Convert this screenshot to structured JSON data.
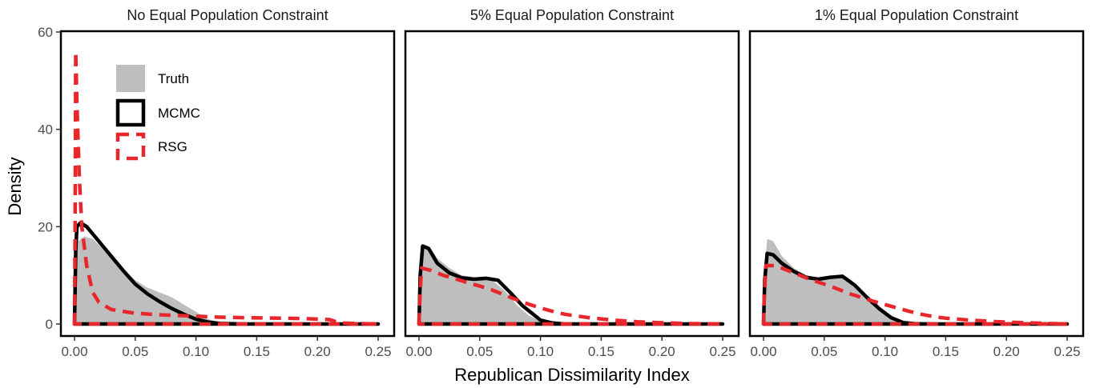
{
  "chart_data": {
    "type": "area",
    "xlabel": "Republican Dissimilarity Index",
    "ylabel": "Density",
    "xlim": [
      0,
      0.25
    ],
    "ylim": [
      0,
      60
    ],
    "xticks": [
      0.0,
      0.05,
      0.1,
      0.15,
      0.2,
      0.25
    ],
    "xtick_labels": [
      "0.00",
      "0.05",
      "0.10",
      "0.15",
      "0.20",
      "0.25"
    ],
    "yticks": [
      0,
      20,
      40,
      60
    ],
    "ytick_labels": [
      "0",
      "20",
      "40",
      "60"
    ],
    "grid": false,
    "legend": {
      "placement": "top-left-inside-first-panel",
      "entries": [
        {
          "label": "Truth",
          "style": "filled",
          "color": "#bebebe"
        },
        {
          "label": "MCMC",
          "style": "solid",
          "color": "#000000"
        },
        {
          "label": "RSG",
          "style": "dashed",
          "color": "#e8272c"
        }
      ]
    },
    "colors": {
      "truth": "#bebebe",
      "mcmc": "#000000",
      "rsg": "#e8272c"
    },
    "panels": [
      {
        "title": "No Equal Population Constraint",
        "series": [
          {
            "name": "Truth",
            "points": [
              [
                0,
                0
              ],
              [
                0.001,
                12
              ],
              [
                0.003,
                17
              ],
              [
                0.008,
                18
              ],
              [
                0.015,
                17.5
              ],
              [
                0.025,
                15
              ],
              [
                0.035,
                12.5
              ],
              [
                0.05,
                9
              ],
              [
                0.06,
                7.5
              ],
              [
                0.07,
                6.5
              ],
              [
                0.08,
                5.5
              ],
              [
                0.09,
                4
              ],
              [
                0.1,
                2.5
              ],
              [
                0.11,
                1
              ],
              [
                0.12,
                0.3
              ],
              [
                0.13,
                0.1
              ],
              [
                0.15,
                0
              ],
              [
                0.25,
                0
              ]
            ]
          },
          {
            "name": "MCMC",
            "points": [
              [
                0,
                0
              ],
              [
                0.001,
                15
              ],
              [
                0.002,
                20
              ],
              [
                0.005,
                20.8
              ],
              [
                0.01,
                20
              ],
              [
                0.02,
                17
              ],
              [
                0.03,
                14
              ],
              [
                0.04,
                11
              ],
              [
                0.05,
                8.2
              ],
              [
                0.06,
                6.2
              ],
              [
                0.07,
                4.6
              ],
              [
                0.08,
                3.2
              ],
              [
                0.09,
                2
              ],
              [
                0.1,
                1
              ],
              [
                0.11,
                0.4
              ],
              [
                0.12,
                0.1
              ],
              [
                0.14,
                0
              ],
              [
                0.25,
                0
              ]
            ]
          },
          {
            "name": "RSG",
            "points": [
              [
                0,
                0
              ],
              [
                0.0005,
                20
              ],
              [
                0.001,
                56
              ],
              [
                0.002,
                45
              ],
              [
                0.004,
                30
              ],
              [
                0.006,
                20
              ],
              [
                0.01,
                12
              ],
              [
                0.015,
                6.5
              ],
              [
                0.02,
                4.5
              ],
              [
                0.03,
                3
              ],
              [
                0.05,
                2.2
              ],
              [
                0.07,
                1.9
              ],
              [
                0.1,
                1.6
              ],
              [
                0.12,
                1.4
              ],
              [
                0.14,
                1.3
              ],
              [
                0.17,
                1.2
              ],
              [
                0.19,
                1.1
              ],
              [
                0.2,
                1
              ],
              [
                0.21,
                0.9
              ],
              [
                0.215,
                0.5
              ],
              [
                0.22,
                0.2
              ],
              [
                0.25,
                0
              ]
            ]
          }
        ]
      },
      {
        "title": "5% Equal Population Constraint",
        "series": [
          {
            "name": "Truth",
            "points": [
              [
                0,
                0
              ],
              [
                0.001,
                10
              ],
              [
                0.003,
                16.5
              ],
              [
                0.008,
                16
              ],
              [
                0.015,
                13.5
              ],
              [
                0.025,
                11.5
              ],
              [
                0.035,
                10
              ],
              [
                0.05,
                9.5
              ],
              [
                0.06,
                9
              ],
              [
                0.07,
                7
              ],
              [
                0.08,
                4
              ],
              [
                0.09,
                1.8
              ],
              [
                0.1,
                0.6
              ],
              [
                0.11,
                0.2
              ],
              [
                0.12,
                0
              ],
              [
                0.25,
                0
              ]
            ]
          },
          {
            "name": "MCMC",
            "points": [
              [
                0,
                0
              ],
              [
                0.001,
                10
              ],
              [
                0.003,
                16
              ],
              [
                0.008,
                15.5
              ],
              [
                0.015,
                12.5
              ],
              [
                0.025,
                10.5
              ],
              [
                0.035,
                9.5
              ],
              [
                0.045,
                9.2
              ],
              [
                0.055,
                9.4
              ],
              [
                0.065,
                9
              ],
              [
                0.075,
                6.5
              ],
              [
                0.085,
                3.8
              ],
              [
                0.095,
                1.8
              ],
              [
                0.1,
                0.8
              ],
              [
                0.11,
                0.2
              ],
              [
                0.12,
                0
              ],
              [
                0.25,
                0
              ]
            ]
          },
          {
            "name": "RSG",
            "points": [
              [
                0,
                0
              ],
              [
                0.0005,
                4
              ],
              [
                0.002,
                11.5
              ],
              [
                0.01,
                11
              ],
              [
                0.02,
                10
              ],
              [
                0.03,
                9.3
              ],
              [
                0.04,
                8.5
              ],
              [
                0.05,
                7.8
              ],
              [
                0.06,
                7
              ],
              [
                0.07,
                6
              ],
              [
                0.08,
                5
              ],
              [
                0.09,
                4.1
              ],
              [
                0.1,
                3.3
              ],
              [
                0.11,
                2.6
              ],
              [
                0.12,
                2
              ],
              [
                0.14,
                1.3
              ],
              [
                0.16,
                0.8
              ],
              [
                0.18,
                0.45
              ],
              [
                0.2,
                0.25
              ],
              [
                0.22,
                0.1
              ],
              [
                0.25,
                0
              ]
            ]
          }
        ]
      },
      {
        "title": "1% Equal Population Constraint",
        "series": [
          {
            "name": "Truth",
            "points": [
              [
                0,
                0
              ],
              [
                0.001,
                11
              ],
              [
                0.003,
                17.5
              ],
              [
                0.008,
                17
              ],
              [
                0.015,
                14
              ],
              [
                0.025,
                11.5
              ],
              [
                0.035,
                10
              ],
              [
                0.045,
                9.5
              ],
              [
                0.055,
                9.8
              ],
              [
                0.065,
                10
              ],
              [
                0.075,
                8
              ],
              [
                0.085,
                5.5
              ],
              [
                0.095,
                3
              ],
              [
                0.105,
                1.2
              ],
              [
                0.115,
                0.4
              ],
              [
                0.125,
                0.1
              ],
              [
                0.14,
                0
              ],
              [
                0.25,
                0
              ]
            ]
          },
          {
            "name": "MCMC",
            "points": [
              [
                0,
                0
              ],
              [
                0.001,
                9
              ],
              [
                0.003,
                14.5
              ],
              [
                0.008,
                14.2
              ],
              [
                0.015,
                12.5
              ],
              [
                0.025,
                10.8
              ],
              [
                0.035,
                9.6
              ],
              [
                0.045,
                9.2
              ],
              [
                0.055,
                9.6
              ],
              [
                0.065,
                9.8
              ],
              [
                0.075,
                8
              ],
              [
                0.085,
                5.5
              ],
              [
                0.095,
                3.2
              ],
              [
                0.105,
                1.3
              ],
              [
                0.115,
                0.3
              ],
              [
                0.125,
                0.05
              ],
              [
                0.14,
                0
              ],
              [
                0.25,
                0
              ]
            ]
          },
          {
            "name": "RSG",
            "points": [
              [
                0,
                0
              ],
              [
                0.0005,
                5
              ],
              [
                0.002,
                12
              ],
              [
                0.01,
                12
              ],
              [
                0.02,
                11
              ],
              [
                0.03,
                10
              ],
              [
                0.04,
                9
              ],
              [
                0.05,
                8.2
              ],
              [
                0.06,
                7.3
              ],
              [
                0.07,
                6.3
              ],
              [
                0.08,
                5.5
              ],
              [
                0.09,
                4.7
              ],
              [
                0.1,
                4
              ],
              [
                0.11,
                3.3
              ],
              [
                0.12,
                2.6
              ],
              [
                0.13,
                2
              ],
              [
                0.14,
                1.5
              ],
              [
                0.15,
                1.2
              ],
              [
                0.17,
                0.8
              ],
              [
                0.19,
                0.5
              ],
              [
                0.21,
                0.3
              ],
              [
                0.23,
                0.15
              ],
              [
                0.25,
                0
              ]
            ]
          }
        ]
      }
    ]
  }
}
